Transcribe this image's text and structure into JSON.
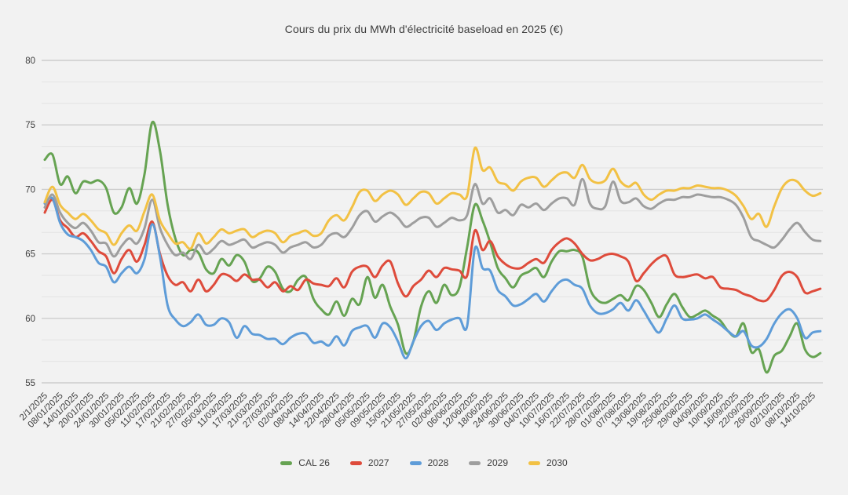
{
  "title": "Cours du prix du MWh d'électricité baseload en 2025 (€)",
  "background_color": "#f2f2f2",
  "grid": {
    "major_color": "#cdcdcd",
    "minor_color": "#e3e3e3"
  },
  "axis_text_color": "#3d3d3d",
  "chart_data": {
    "type": "line",
    "title": "Cours du prix du MWh d'électricité baseload en 2025 (€)",
    "xlabel": "",
    "ylabel": "",
    "ylim": [
      55,
      80
    ],
    "y_ticks": [
      55,
      60,
      65,
      70,
      75,
      80
    ],
    "y_minor_divisions": 3,
    "grid": true,
    "legend_position": "bottom",
    "points_per_tick_interval": 2,
    "x_tick_labels": [
      "2/1/2025",
      "08/01/2025",
      "14/01/2025",
      "20/01/2025",
      "24/01/2025",
      "30/01/2025",
      "05/02/2025",
      "11/02/2025",
      "17/02/2025",
      "21/02/2025",
      "27/02/2025",
      "05/03/2025",
      "11/03/2025",
      "17/03/2025",
      "21/03/2025",
      "27/03/2025",
      "02/04/2025",
      "08/04/2025",
      "14/04/2025",
      "22/04/2025",
      "28/04/2025",
      "05/05/2025",
      "09/05/2025",
      "15/05/2025",
      "21/05/2025",
      "27/05/2025",
      "02/06/2025",
      "06/06/2025",
      "12/06/2025",
      "18/06/2025",
      "24/06/2025",
      "30/06/2025",
      "04/07/2025",
      "10/07/2025",
      "16/07/2025",
      "22/07/2025",
      "28/07/2025",
      "01/08/2025",
      "07/08/2025",
      "13/08/2025",
      "19/08/2025",
      "25/08/2025",
      "29/08/2025",
      "04/09/2025",
      "10/09/2025",
      "16/09/2025",
      "22/09/2025",
      "26/09/2025",
      "02/10/2025",
      "08/10/2025",
      "14/10/2025"
    ],
    "series": [
      {
        "name": "CAL 26",
        "color": "#66a352",
        "values": [
          72.3,
          72.7,
          70.4,
          71.0,
          69.7,
          70.6,
          70.5,
          70.7,
          70.1,
          68.2,
          68.6,
          70.1,
          68.9,
          71.2,
          75.2,
          73.0,
          68.8,
          66.2,
          64.9,
          65.3,
          65.1,
          63.8,
          63.5,
          64.6,
          64.1,
          64.9,
          64.4,
          62.9,
          63.1,
          64.0,
          63.6,
          62.3,
          62.1,
          63.0,
          63.2,
          61.5,
          60.7,
          60.3,
          61.3,
          60.2,
          61.5,
          61.1,
          63.2,
          61.6,
          62.6,
          60.9,
          59.5,
          57.3,
          58.2,
          60.9,
          62.1,
          61.2,
          62.6,
          61.8,
          62.4,
          65.5,
          68.8,
          67.6,
          65.9,
          63.9,
          63.1,
          62.4,
          63.3,
          63.6,
          63.9,
          63.2,
          64.4,
          65.2,
          65.2,
          65.3,
          64.8,
          62.3,
          61.4,
          61.2,
          61.5,
          61.8,
          61.4,
          62.5,
          62.2,
          61.2,
          60.1,
          61.1,
          61.9,
          60.9,
          60.1,
          60.3,
          60.6,
          60.2,
          59.8,
          59.0,
          58.6,
          59.6,
          57.4,
          57.6,
          55.8,
          57.1,
          57.5,
          58.6,
          59.6,
          57.6,
          57.0,
          57.3
        ]
      },
      {
        "name": "2027",
        "color": "#de4b3b",
        "values": [
          68.2,
          69.2,
          67.6,
          67.0,
          66.3,
          66.6,
          66.0,
          65.2,
          64.8,
          63.5,
          64.6,
          65.3,
          64.4,
          65.7,
          67.5,
          65.0,
          63.3,
          62.6,
          62.8,
          62.1,
          63.0,
          62.1,
          62.6,
          63.4,
          63.3,
          62.9,
          63.4,
          63.0,
          63.0,
          62.4,
          62.8,
          62.1,
          62.5,
          62.2,
          63.0,
          62.7,
          62.6,
          62.5,
          63.1,
          62.4,
          63.6,
          64.0,
          64.0,
          63.2,
          64.1,
          64.4,
          62.7,
          61.7,
          62.5,
          63.0,
          63.7,
          63.2,
          63.9,
          63.8,
          63.7,
          63.3,
          66.8,
          65.3,
          66.0,
          64.8,
          64.2,
          63.9,
          63.9,
          64.3,
          64.6,
          64.3,
          65.3,
          65.9,
          66.2,
          65.8,
          65.0,
          64.5,
          64.6,
          64.9,
          65.0,
          64.8,
          64.4,
          62.9,
          63.5,
          64.2,
          64.7,
          64.8,
          63.4,
          63.2,
          63.3,
          63.4,
          63.1,
          63.2,
          62.4,
          62.3,
          62.2,
          61.9,
          61.7,
          61.4,
          61.4,
          62.2,
          63.3,
          63.6,
          63.2,
          62.0,
          62.1,
          62.3
        ]
      },
      {
        "name": "2028",
        "color": "#5e9cd8",
        "values": [
          68.9,
          69.3,
          67.4,
          66.5,
          66.3,
          66.0,
          65.3,
          64.3,
          64.0,
          62.8,
          63.5,
          64.0,
          63.5,
          64.6,
          67.3,
          64.8,
          61.0,
          59.9,
          59.4,
          59.7,
          60.3,
          59.5,
          59.5,
          60.0,
          59.7,
          58.5,
          59.4,
          58.8,
          58.7,
          58.4,
          58.4,
          58.0,
          58.5,
          58.8,
          58.8,
          58.1,
          58.2,
          57.9,
          58.6,
          57.9,
          59.0,
          59.3,
          59.4,
          58.5,
          59.6,
          59.3,
          58.2,
          56.9,
          58.2,
          59.4,
          59.8,
          59.1,
          59.6,
          59.9,
          60.0,
          59.4,
          65.4,
          63.9,
          63.7,
          62.2,
          61.7,
          61.0,
          61.1,
          61.5,
          61.9,
          61.3,
          62.1,
          62.8,
          63.0,
          62.6,
          62.3,
          61.0,
          60.4,
          60.4,
          60.7,
          61.2,
          60.6,
          61.4,
          60.6,
          59.6,
          58.9,
          60.0,
          61.0,
          60.0,
          59.9,
          60.0,
          60.3,
          59.9,
          59.5,
          59.0,
          58.6,
          59.0,
          57.9,
          57.8,
          58.4,
          59.6,
          60.4,
          60.7,
          60.0,
          58.5,
          58.9,
          59.0
        ]
      },
      {
        "name": "2029",
        "color": "#9e9e9e",
        "values": [
          68.6,
          69.6,
          68.2,
          67.4,
          67.0,
          67.4,
          66.8,
          65.9,
          65.8,
          64.8,
          65.6,
          66.2,
          65.8,
          67.0,
          69.2,
          67.0,
          65.7,
          64.9,
          65.1,
          64.6,
          65.7,
          65.0,
          65.4,
          66.0,
          65.7,
          65.9,
          66.1,
          65.5,
          65.7,
          65.9,
          65.7,
          65.1,
          65.5,
          65.7,
          65.9,
          65.5,
          65.7,
          66.4,
          66.6,
          66.3,
          67.0,
          68.0,
          68.3,
          67.5,
          67.9,
          68.2,
          67.8,
          67.1,
          67.4,
          67.8,
          67.8,
          67.1,
          67.4,
          67.8,
          67.6,
          68.0,
          70.4,
          68.9,
          69.3,
          68.2,
          68.4,
          68.0,
          68.8,
          68.6,
          68.9,
          68.4,
          68.9,
          69.3,
          69.3,
          68.8,
          70.8,
          68.9,
          68.5,
          68.7,
          70.6,
          69.1,
          69.0,
          69.3,
          68.7,
          68.5,
          68.9,
          69.2,
          69.2,
          69.4,
          69.4,
          69.6,
          69.5,
          69.4,
          69.4,
          69.2,
          68.8,
          67.8,
          66.3,
          66.0,
          65.7,
          65.5,
          66.1,
          66.9,
          67.4,
          66.7,
          66.1,
          66.0
        ]
      },
      {
        "name": "2030",
        "color": "#f2c144",
        "values": [
          69.0,
          70.2,
          68.8,
          68.2,
          67.7,
          68.1,
          67.6,
          66.9,
          66.6,
          65.7,
          66.6,
          67.2,
          66.8,
          68.3,
          69.6,
          67.6,
          66.6,
          65.8,
          65.9,
          65.4,
          66.6,
          65.8,
          66.3,
          66.9,
          66.6,
          66.8,
          66.9,
          66.3,
          66.6,
          66.8,
          66.6,
          65.9,
          66.4,
          66.6,
          66.8,
          66.4,
          66.6,
          67.6,
          68.0,
          67.6,
          68.6,
          69.8,
          69.9,
          69.1,
          69.6,
          69.9,
          69.6,
          68.8,
          69.3,
          69.8,
          69.7,
          68.9,
          69.3,
          69.7,
          69.6,
          69.5,
          73.2,
          71.5,
          71.7,
          70.6,
          70.4,
          69.9,
          70.6,
          70.9,
          70.9,
          70.2,
          70.7,
          71.2,
          71.3,
          70.9,
          71.9,
          70.8,
          70.5,
          70.7,
          71.6,
          70.6,
          70.2,
          70.5,
          69.6,
          69.2,
          69.6,
          69.9,
          69.9,
          70.1,
          70.1,
          70.3,
          70.2,
          70.1,
          70.1,
          69.9,
          69.5,
          68.7,
          67.7,
          68.1,
          67.1,
          68.7,
          70.1,
          70.7,
          70.6,
          69.9,
          69.5,
          69.7
        ]
      }
    ]
  }
}
